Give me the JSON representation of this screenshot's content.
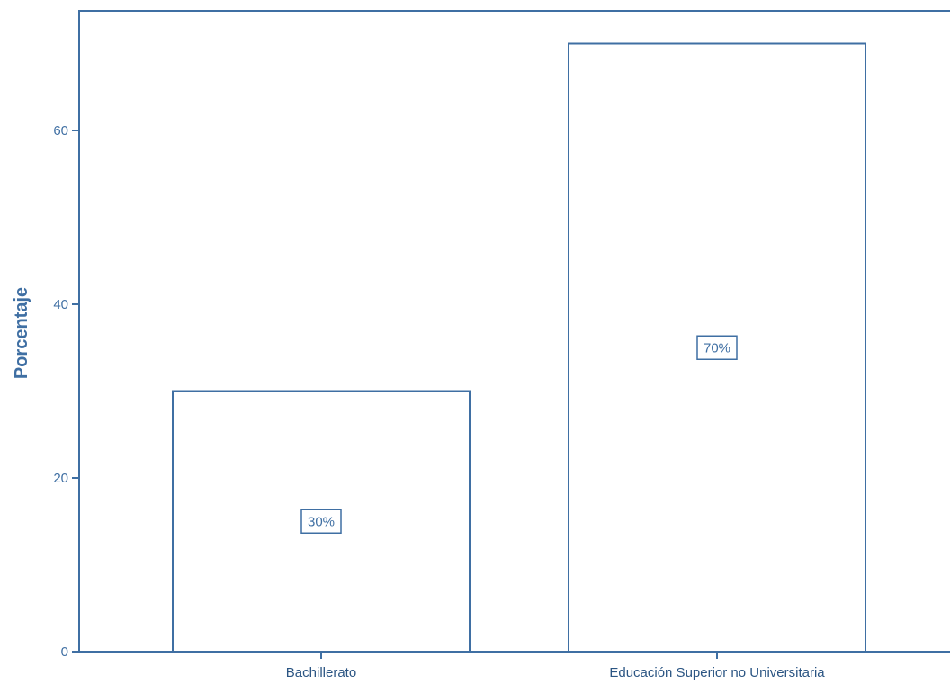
{
  "chart_data": {
    "type": "bar",
    "categories": [
      "Bachillerato",
      "Educación Superior no Universitaria"
    ],
    "values": [
      30,
      70
    ],
    "data_labels": [
      "30%",
      "70%"
    ],
    "title": "",
    "xlabel": "",
    "ylabel": "Porcentaje",
    "ylim": [
      0,
      70
    ],
    "yticks": [
      0,
      20,
      40,
      60
    ],
    "ytick_labels": [
      "0",
      "20",
      "40",
      "60"
    ],
    "grid": false,
    "colors": {
      "stroke": "#3f6fa3",
      "fill": "#ffffff",
      "text": "#3f6fa3"
    }
  }
}
